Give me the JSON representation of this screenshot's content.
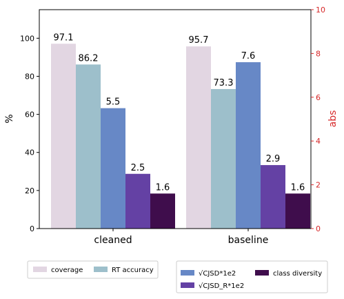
{
  "chart_data": {
    "type": "bar",
    "categories": [
      "cleaned",
      "baseline"
    ],
    "ylabel_left": "%",
    "ylabel_right": "abs",
    "ylim_left": [
      0,
      115
    ],
    "ylim_right": [
      0,
      10
    ],
    "yticks_left": [
      0,
      20,
      40,
      60,
      80,
      100
    ],
    "yticks_right": [
      0,
      2,
      4,
      6,
      8,
      10
    ],
    "series": [
      {
        "name": "coverage",
        "axis": "left",
        "color": "#e2d6e2",
        "values": [
          97.1,
          95.7
        ],
        "labels": [
          "97.1",
          "95.7"
        ]
      },
      {
        "name": "RT accuracy",
        "axis": "left",
        "color": "#9dbfcb",
        "values": [
          86.2,
          73.3
        ],
        "labels": [
          "86.2",
          "73.3"
        ]
      },
      {
        "name": "√CJSD*1e2",
        "axis": "right",
        "color": "#6788c6",
        "values": [
          5.5,
          7.6
        ],
        "labels": [
          "5.5",
          "7.6"
        ]
      },
      {
        "name": "√CJSD_R*1e2",
        "axis": "right",
        "color": "#6441a4",
        "values": [
          2.5,
          2.9
        ],
        "labels": [
          "2.5",
          "2.9"
        ]
      },
      {
        "name": "class diversity",
        "axis": "right",
        "color": "#3f0d4c",
        "values": [
          1.6,
          1.6
        ],
        "labels": [
          "1.6",
          "1.6"
        ]
      }
    ],
    "legend_left": [
      "coverage",
      "RT accuracy"
    ],
    "legend_right": [
      "√CJSD*1e2",
      "class diversity",
      "√CJSD_R*1e2"
    ],
    "right_axis_color": "#d62728",
    "grid": false
  }
}
